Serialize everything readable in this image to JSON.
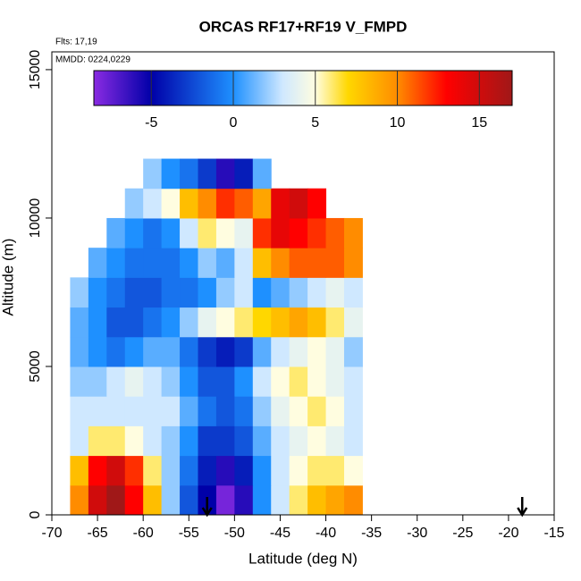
{
  "chart_data": {
    "type": "heatmap",
    "title": "ORCAS RF17+RF19 V_FMPD",
    "subtitle": "Flts: 17,19",
    "annotation": "MMDD: 0224,0229",
    "x_label": "Latitude (deg N)",
    "y_label": "Altitude (m)",
    "xlim": [
      -70,
      -15
    ],
    "xticks": [
      -70,
      -65,
      -60,
      -55,
      -50,
      -45,
      -40,
      -35,
      -30,
      -25,
      -20,
      -15
    ],
    "ylim": [
      0,
      15600
    ],
    "yticks": [
      0,
      5000,
      10000,
      15000
    ],
    "x": [
      -67,
      -65,
      -63,
      -61,
      -59,
      -57,
      -55,
      -53,
      -51,
      -49,
      -47,
      -45,
      -43,
      -41,
      -39,
      -37
    ],
    "y": [
      500,
      1500,
      2500,
      3500,
      4500,
      5500,
      6500,
      7500,
      8500,
      9500,
      10500,
      11500
    ],
    "z": [
      [
        10,
        15,
        17,
        13,
        8,
        2,
        -2,
        -5,
        -8,
        -6,
        0,
        3,
        6,
        8,
        9,
        10
      ],
      [
        8,
        13,
        15,
        12,
        6,
        2,
        -1,
        -4,
        -6,
        -4,
        0,
        3,
        5,
        6,
        6,
        5
      ],
      [
        3,
        6,
        6,
        5,
        3,
        2,
        0,
        -3,
        -3,
        -2,
        1,
        3,
        4,
        5,
        4,
        3
      ],
      [
        3,
        3,
        3,
        3,
        3,
        3,
        1,
        -1,
        -2,
        -1,
        2,
        4,
        5,
        6,
        5,
        3
      ],
      [
        2,
        2,
        3,
        4,
        3,
        2,
        0,
        -2,
        -2,
        0,
        3,
        5,
        6,
        5,
        4,
        3
      ],
      [
        1,
        0,
        -1,
        0,
        1,
        1,
        -1,
        -3,
        -4,
        -3,
        1,
        3,
        4,
        5,
        4,
        2
      ],
      [
        1,
        0,
        -2,
        -2,
        -1,
        0,
        2,
        4,
        5,
        6,
        7,
        8,
        9,
        8,
        6,
        4
      ],
      [
        2,
        0,
        -1,
        -2,
        -2,
        -1,
        -1,
        0,
        2,
        3,
        0,
        1,
        2,
        3,
        4,
        3
      ],
      [
        null,
        1,
        0,
        -1,
        -1,
        -1,
        0,
        2,
        1,
        3,
        8,
        10,
        11,
        11,
        11,
        10
      ],
      [
        null,
        null,
        1,
        0,
        -1,
        0,
        3,
        6,
        5,
        4,
        12,
        14,
        13,
        12,
        11,
        10
      ],
      [
        null,
        null,
        null,
        2,
        3,
        5,
        8,
        10,
        12,
        11,
        9,
        14,
        15,
        13,
        null,
        null
      ],
      [
        null,
        null,
        null,
        null,
        2,
        0,
        -1,
        -3,
        -6,
        -4,
        1,
        null,
        null,
        null,
        null,
        null
      ]
    ],
    "zlim": [
      -8.5,
      17
    ],
    "zticks": [
      -5,
      0,
      5,
      10,
      15
    ],
    "colorscale": [
      [
        -8.5,
        "#8a2be2"
      ],
      [
        -5,
        "#0000a8"
      ],
      [
        0,
        "#1e90ff"
      ],
      [
        3,
        "#cfe8ff"
      ],
      [
        5,
        "#fffde0"
      ],
      [
        7,
        "#ffd700"
      ],
      [
        10,
        "#ff8c00"
      ],
      [
        13,
        "#ff0000"
      ],
      [
        17,
        "#a01818"
      ]
    ],
    "markers_x": [
      -53,
      -18.5
    ]
  }
}
